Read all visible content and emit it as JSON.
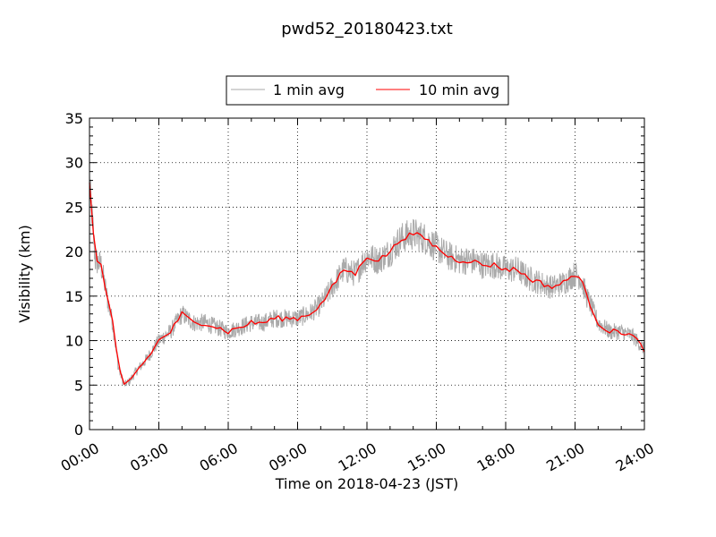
{
  "chart_data": {
    "type": "line",
    "title": "pwd52_20180423.txt",
    "xlabel": "Time on 2018-04-23 (JST)",
    "ylabel": "Visibility (km)",
    "xlim": [
      "00:00",
      "24:00"
    ],
    "ylim": [
      0,
      35
    ],
    "x_tick_labels": [
      "00:00",
      "03:00",
      "06:00",
      "09:00",
      "12:00",
      "15:00",
      "18:00",
      "21:00",
      "24:00"
    ],
    "y_tick_labels": [
      "0",
      "5",
      "10",
      "15",
      "20",
      "25",
      "30",
      "35"
    ],
    "grid": true,
    "legend": "top-center, outside plot",
    "series": [
      {
        "name": "1 min avg",
        "color": "#aaaaaa",
        "noise_amplitude": 1.2,
        "x": [
          "00:00",
          "00:15",
          "00:30",
          "00:45",
          "01:00",
          "01:15",
          "01:30",
          "01:45",
          "02:00",
          "02:30",
          "03:00",
          "03:30",
          "04:00",
          "04:30",
          "05:00",
          "05:30",
          "06:00",
          "06:30",
          "07:00",
          "07:30",
          "08:00",
          "08:30",
          "09:00",
          "09:30",
          "10:00",
          "10:30",
          "11:00",
          "11:30",
          "12:00",
          "12:30",
          "13:00",
          "13:30",
          "14:00",
          "14:30",
          "15:00",
          "15:30",
          "16:00",
          "16:30",
          "17:00",
          "17:30",
          "18:00",
          "18:30",
          "19:00",
          "19:30",
          "20:00",
          "20:30",
          "21:00",
          "21:15",
          "21:30",
          "22:00",
          "22:30",
          "23:00",
          "23:30",
          "24:00"
        ],
        "y": [
          28,
          19,
          18.5,
          15,
          12,
          7,
          5,
          5.5,
          6.5,
          8,
          10,
          11,
          13,
          12,
          12,
          11.5,
          11,
          11.5,
          12,
          12,
          12.5,
          12.5,
          12.5,
          13,
          14,
          16,
          18,
          17.5,
          19.5,
          19,
          20,
          21.5,
          22,
          21.5,
          20.5,
          19.5,
          19,
          19,
          18.5,
          18.5,
          18,
          18,
          17,
          16.5,
          16,
          16.5,
          17.5,
          17,
          15,
          12,
          11,
          11,
          10.5,
          9
        ]
      },
      {
        "name": "10 min avg",
        "color": "#ff0000",
        "x": [
          "00:00",
          "00:15",
          "00:30",
          "00:45",
          "01:00",
          "01:15",
          "01:30",
          "01:45",
          "02:00",
          "02:30",
          "03:00",
          "03:30",
          "04:00",
          "04:30",
          "05:00",
          "05:30",
          "06:00",
          "06:30",
          "07:00",
          "07:30",
          "08:00",
          "08:30",
          "09:00",
          "09:30",
          "10:00",
          "10:30",
          "11:00",
          "11:30",
          "12:00",
          "12:30",
          "13:00",
          "13:30",
          "14:00",
          "14:30",
          "15:00",
          "15:30",
          "16:00",
          "16:30",
          "17:00",
          "17:30",
          "18:00",
          "18:30",
          "19:00",
          "19:30",
          "20:00",
          "20:30",
          "21:00",
          "21:15",
          "21:30",
          "22:00",
          "22:30",
          "23:00",
          "23:30",
          "24:00"
        ],
        "y": [
          28,
          19,
          18.5,
          15,
          12,
          7,
          5,
          5.5,
          6.5,
          8,
          10,
          11,
          13,
          12,
          12,
          11.5,
          11,
          11.5,
          12,
          12,
          12.5,
          12.5,
          12.5,
          13,
          14,
          16,
          18,
          17.5,
          19.5,
          19,
          20,
          21.5,
          22,
          21.5,
          20.5,
          19.5,
          19,
          19,
          18.5,
          18.5,
          18,
          18,
          17,
          16.5,
          16,
          16.5,
          17.5,
          17,
          15,
          12,
          11,
          11,
          10.5,
          9
        ]
      }
    ]
  }
}
